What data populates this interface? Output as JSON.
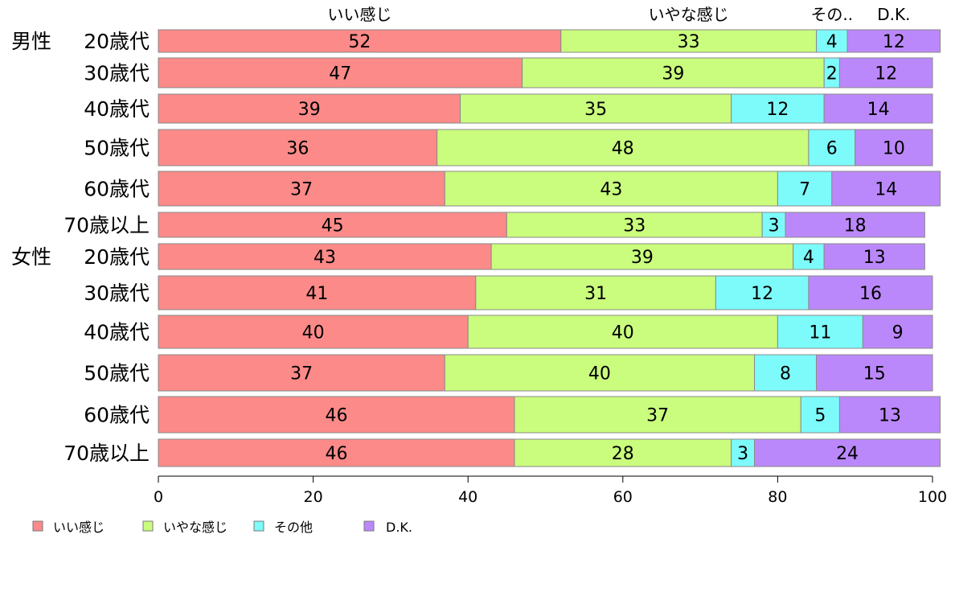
{
  "chart_data": {
    "type": "bar",
    "orientation": "horizontal",
    "stacked": true,
    "xlim": [
      0,
      100
    ],
    "xticks": [
      "0",
      "20",
      "40",
      "60",
      "80",
      "100"
    ],
    "top_labels": [
      "いい感じ",
      "いやな感じ",
      "その..",
      "D.K."
    ],
    "group_labels": [
      "男性",
      "女性"
    ],
    "categories": [
      "20歳代",
      "30歳代",
      "40歳代",
      "50歳代",
      "60歳代",
      "70歳以上",
      "20歳代",
      "30歳代",
      "40歳代",
      "50歳代",
      "60歳代",
      "70歳以上"
    ],
    "series": [
      {
        "name": "いい感じ",
        "color": "#fb8a89",
        "values": [
          52,
          47,
          39,
          36,
          37,
          45,
          43,
          41,
          40,
          37,
          46,
          46
        ]
      },
      {
        "name": "いやな感じ",
        "color": "#cafc7d",
        "values": [
          33,
          39,
          35,
          48,
          43,
          33,
          39,
          31,
          40,
          40,
          37,
          28
        ]
      },
      {
        "name": "その他",
        "color": "#7dfafa",
        "values": [
          4,
          2,
          12,
          6,
          7,
          3,
          4,
          12,
          11,
          8,
          5,
          3
        ]
      },
      {
        "name": "D.K.",
        "color": "#bb88fb",
        "values": [
          12,
          12,
          14,
          10,
          14,
          18,
          13,
          16,
          9,
          15,
          13,
          24
        ]
      }
    ],
    "legend": {
      "position": "bottom-left",
      "labels": [
        "いい感じ",
        "いやな感じ",
        "その他",
        "D.K."
      ]
    },
    "grid": false
  }
}
